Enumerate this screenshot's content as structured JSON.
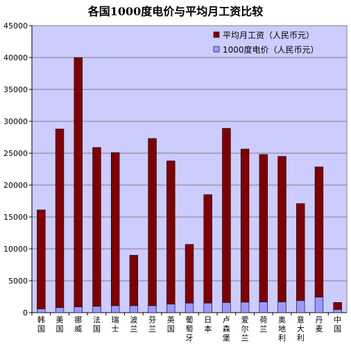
{
  "chart_data": {
    "type": "bar",
    "stacked": true,
    "title": "各国1000度电价与平均月工资比较",
    "categories": [
      "韩国",
      "美国",
      "挪威",
      "法国",
      "瑞士",
      "波兰",
      "芬兰",
      "英国",
      "葡萄牙",
      "日本",
      "卢森堡",
      "爱尔兰",
      "荷兰",
      "奥地利",
      "意大利",
      "丹麦",
      "中国"
    ],
    "series": [
      {
        "name": "1000度电价（人民币元）",
        "color": "#9999ff",
        "values": [
          600,
          800,
          900,
          1000,
          1100,
          1100,
          1100,
          1350,
          1500,
          1500,
          1600,
          1650,
          1700,
          1700,
          1900,
          2450,
          500
        ]
      },
      {
        "name": "平均月工资（人民币元）",
        "color": "#800000",
        "values": [
          15500,
          28000,
          39100,
          24900,
          24000,
          7900,
          26200,
          22450,
          9200,
          17000,
          27300,
          24000,
          23100,
          22800,
          15200,
          20400,
          1100
        ]
      }
    ],
    "legend_order": [
      1,
      0
    ],
    "ylim": [
      0,
      45000
    ],
    "yticks": [
      0,
      5000,
      10000,
      15000,
      20000,
      25000,
      30000,
      35000,
      40000,
      45000
    ],
    "grid": true,
    "legend_position": "top-right",
    "plot_background": "#ccccff"
  }
}
